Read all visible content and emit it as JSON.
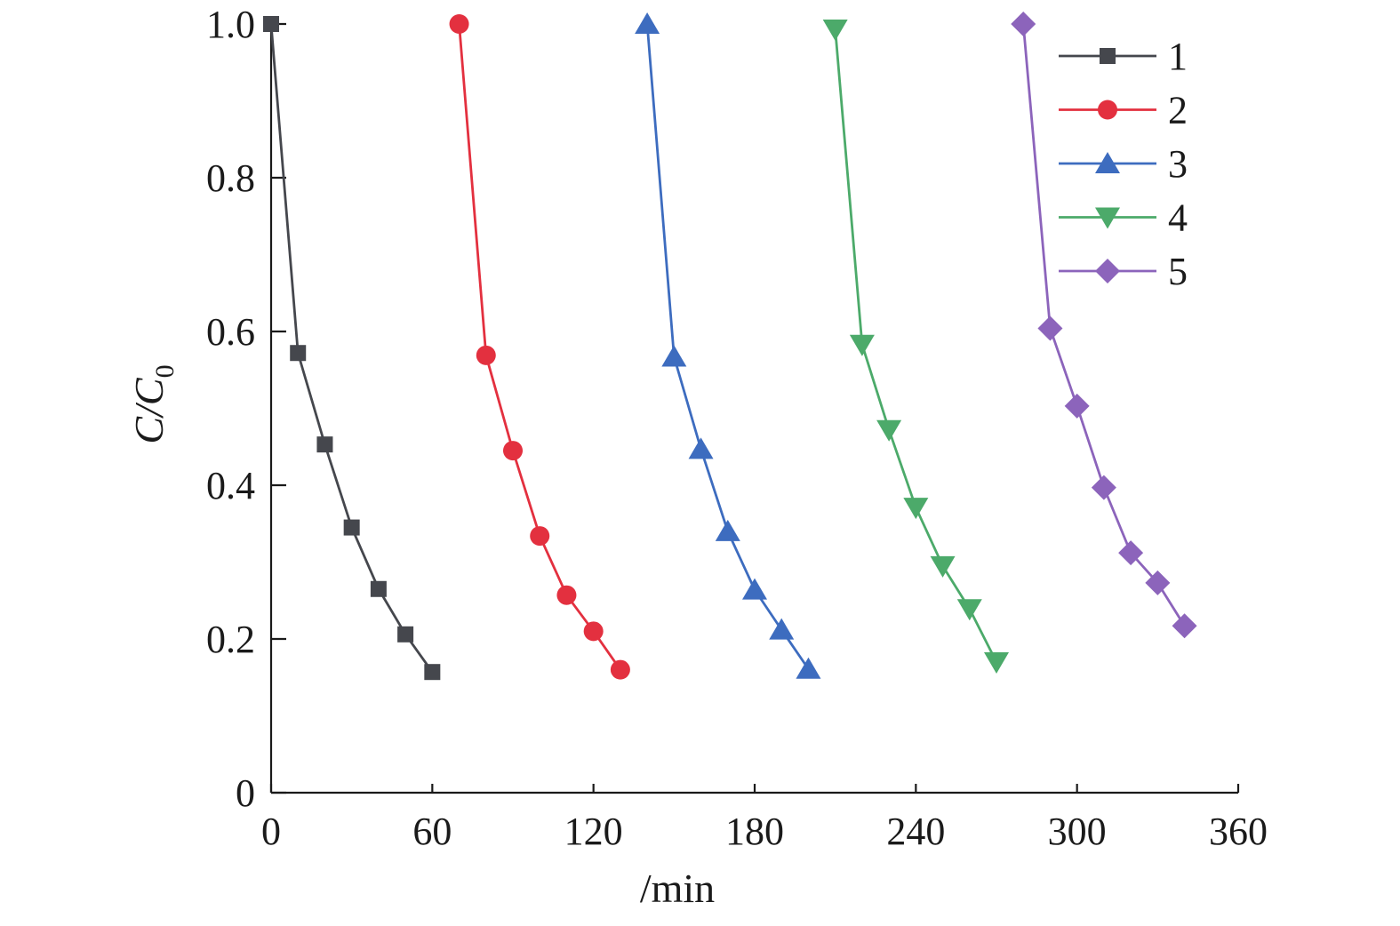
{
  "chart_data": {
    "type": "line",
    "xlabel": "/min",
    "ylabel": {
      "main": "C/C",
      "sub": "0"
    },
    "xlim": [
      0,
      360
    ],
    "ylim": [
      0,
      1.0
    ],
    "xticks": [
      0,
      60,
      120,
      180,
      240,
      300,
      360
    ],
    "xtick_labels": [
      "0",
      "60",
      "120",
      "180",
      "240",
      "300",
      "360"
    ],
    "yticks": [
      0,
      0.2,
      0.4,
      0.6,
      0.8,
      1.0
    ],
    "ytick_labels": [
      "0",
      "0.2",
      "0.4",
      "0.6",
      "0.8",
      "1.0"
    ],
    "grid": false,
    "legend_position": "top-right",
    "series": [
      {
        "name": "1",
        "color": "#45474d",
        "marker": "square",
        "x": [
          0,
          10,
          20,
          30,
          40,
          50,
          60
        ],
        "y": [
          1.0,
          0.572,
          0.453,
          0.345,
          0.265,
          0.206,
          0.157
        ]
      },
      {
        "name": "2",
        "color": "#e3303f",
        "marker": "circle",
        "x": [
          70,
          80,
          90,
          100,
          110,
          120,
          130
        ],
        "y": [
          1.0,
          0.569,
          0.445,
          0.334,
          0.257,
          0.21,
          0.16
        ]
      },
      {
        "name": "3",
        "color": "#3d6cbf",
        "marker": "triangle-up",
        "x": [
          140,
          150,
          160,
          170,
          180,
          190,
          200
        ],
        "y": [
          1.0,
          0.567,
          0.447,
          0.34,
          0.264,
          0.212,
          0.161
        ]
      },
      {
        "name": "4",
        "color": "#4caa6a",
        "marker": "triangle-down",
        "x": [
          210,
          220,
          230,
          240,
          250,
          260,
          270
        ],
        "y": [
          0.993,
          0.583,
          0.472,
          0.371,
          0.295,
          0.239,
          0.17
        ]
      },
      {
        "name": "5",
        "color": "#8c64bb",
        "marker": "diamond",
        "x": [
          280,
          290,
          300,
          310,
          320,
          330,
          340
        ],
        "y": [
          1.0,
          0.604,
          0.503,
          0.397,
          0.312,
          0.273,
          0.217
        ]
      }
    ]
  }
}
